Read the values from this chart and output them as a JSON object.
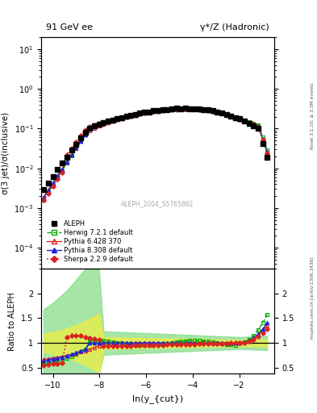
{
  "title_left": "91 GeV ee",
  "title_right": "γ*/Z (Hadronic)",
  "ylabel_main": "σ(3 jet)/σ(inclusive)",
  "ylabel_ratio": "Ratio to ALEPH",
  "xlabel": "ln(y_{cut})",
  "watermark": "ALEPH_2004_S5765862",
  "right_label": "mcplots.cern.ch [arXiv:1306.3436]",
  "rivet_label": "Rivet 3.1.10; ≥ 3.3M events",
  "xlim": [
    -10.5,
    -0.5
  ],
  "ylim_main_log": [
    3e-05,
    20
  ],
  "ylim_ratio": [
    0.38,
    2.5
  ],
  "ratio_yticks": [
    0.5,
    1.0,
    1.5,
    2.0
  ],
  "xticks": [
    -10,
    -8,
    -6,
    -4,
    -2
  ],
  "color_herwig": "#00aa00",
  "color_pythia6": "#dd2222",
  "color_pythia8": "#2222dd",
  "color_sherpa": "#dd2222",
  "color_aleph": "#000000"
}
